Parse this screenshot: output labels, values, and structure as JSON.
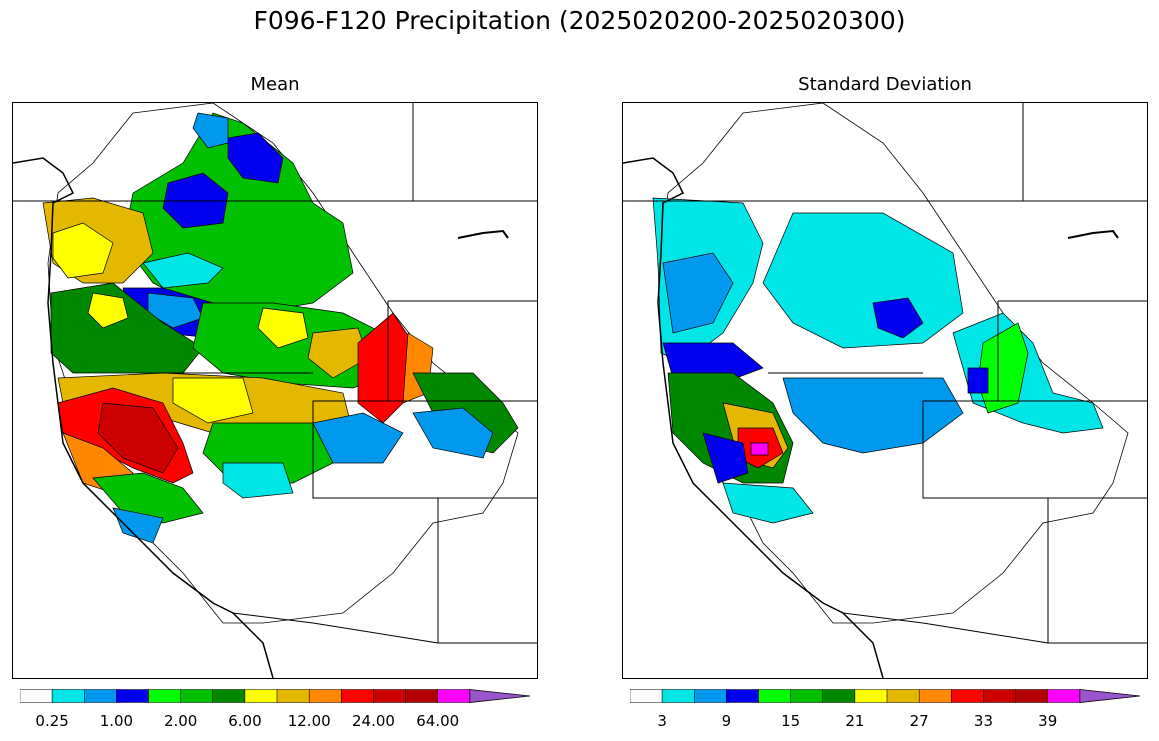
{
  "title": "F096-F120 Precipitation (2025020200-2025020300)",
  "panels": {
    "mean": {
      "title": "Mean",
      "colorbar": {
        "colors": [
          "#ffffff",
          "#00e5e5",
          "#0099ee",
          "#0000ee",
          "#00ff00",
          "#00c000",
          "#008800",
          "#ffff00",
          "#e5b800",
          "#ff8800",
          "#ff0000",
          "#cc0000",
          "#b30000",
          "#ff00ff",
          "#9955cc"
        ],
        "extend": "max",
        "tick_labels": [
          "0.25",
          "1.00",
          "2.00",
          "6.00",
          "12.00",
          "24.00",
          "64.00"
        ]
      }
    },
    "std": {
      "title": "Standard Deviation",
      "colorbar": {
        "colors": [
          "#ffffff",
          "#00e5e5",
          "#0099ee",
          "#0000ee",
          "#00ff00",
          "#00c000",
          "#008800",
          "#ffff00",
          "#e5b800",
          "#ff8800",
          "#ff0000",
          "#cc0000",
          "#b30000",
          "#ff00ff",
          "#9955cc"
        ],
        "extend": "max",
        "tick_labels": [
          "3",
          "9",
          "15",
          "21",
          "27",
          "33",
          "39"
        ]
      }
    }
  }
}
